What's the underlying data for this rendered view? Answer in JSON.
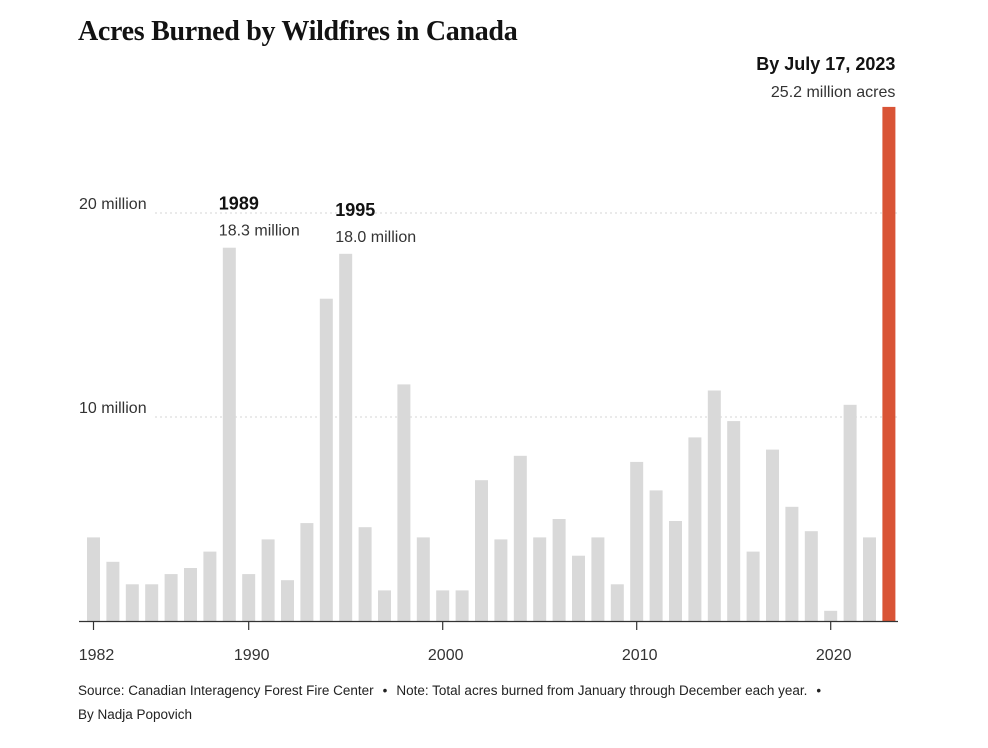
{
  "chart_data": {
    "type": "bar",
    "title": "Acres Burned by Wildfires in Canada",
    "xlabel": "",
    "ylabel": "",
    "ylim": [
      0,
      25.2
    ],
    "y_unit": "million acres",
    "categories": [
      1982,
      1983,
      1984,
      1985,
      1986,
      1987,
      1988,
      1989,
      1990,
      1991,
      1992,
      1993,
      1994,
      1995,
      1996,
      1997,
      1998,
      1999,
      2000,
      2001,
      2002,
      2003,
      2004,
      2005,
      2006,
      2007,
      2008,
      2009,
      2010,
      2011,
      2012,
      2013,
      2014,
      2015,
      2016,
      2017,
      2018,
      2019,
      2020,
      2021,
      2022,
      2023
    ],
    "values": [
      4.1,
      2.9,
      1.8,
      1.8,
      2.3,
      2.6,
      3.4,
      18.3,
      2.3,
      4.0,
      2.0,
      4.8,
      15.8,
      18.0,
      4.6,
      1.5,
      11.6,
      4.1,
      1.5,
      1.5,
      6.9,
      4.0,
      8.1,
      4.1,
      5.0,
      3.2,
      4.1,
      1.8,
      7.8,
      6.4,
      4.9,
      9.0,
      11.3,
      9.8,
      3.4,
      8.4,
      5.6,
      4.4,
      0.5,
      10.6,
      4.1,
      25.2
    ],
    "highlight_index": 41,
    "bar_color": "#d9d9d9",
    "highlight_color": "#d95436",
    "y_gridlines": [
      10,
      20
    ],
    "y_tick_labels": [
      "10 million",
      "20 million"
    ],
    "x_ticks": [
      1982,
      1990,
      2000,
      2010,
      2020
    ],
    "x_tick_labels": [
      "1982",
      "1990",
      "2000",
      "2010",
      "2020"
    ],
    "annotations": [
      {
        "category": 1989,
        "label": "1989",
        "value_label": "18.3 million"
      },
      {
        "category": 1995,
        "label": "1995",
        "value_label": "18.0 million"
      },
      {
        "category": 2023,
        "label": "By July 17, 2023",
        "value_label": "25.2 million acres"
      }
    ]
  },
  "footer": {
    "source": "Source: Canadian Interagency Forest Fire Center",
    "separator": "•",
    "note": "Note: Total acres burned from January through December each year.",
    "byline": "By Nadja Popovich"
  }
}
